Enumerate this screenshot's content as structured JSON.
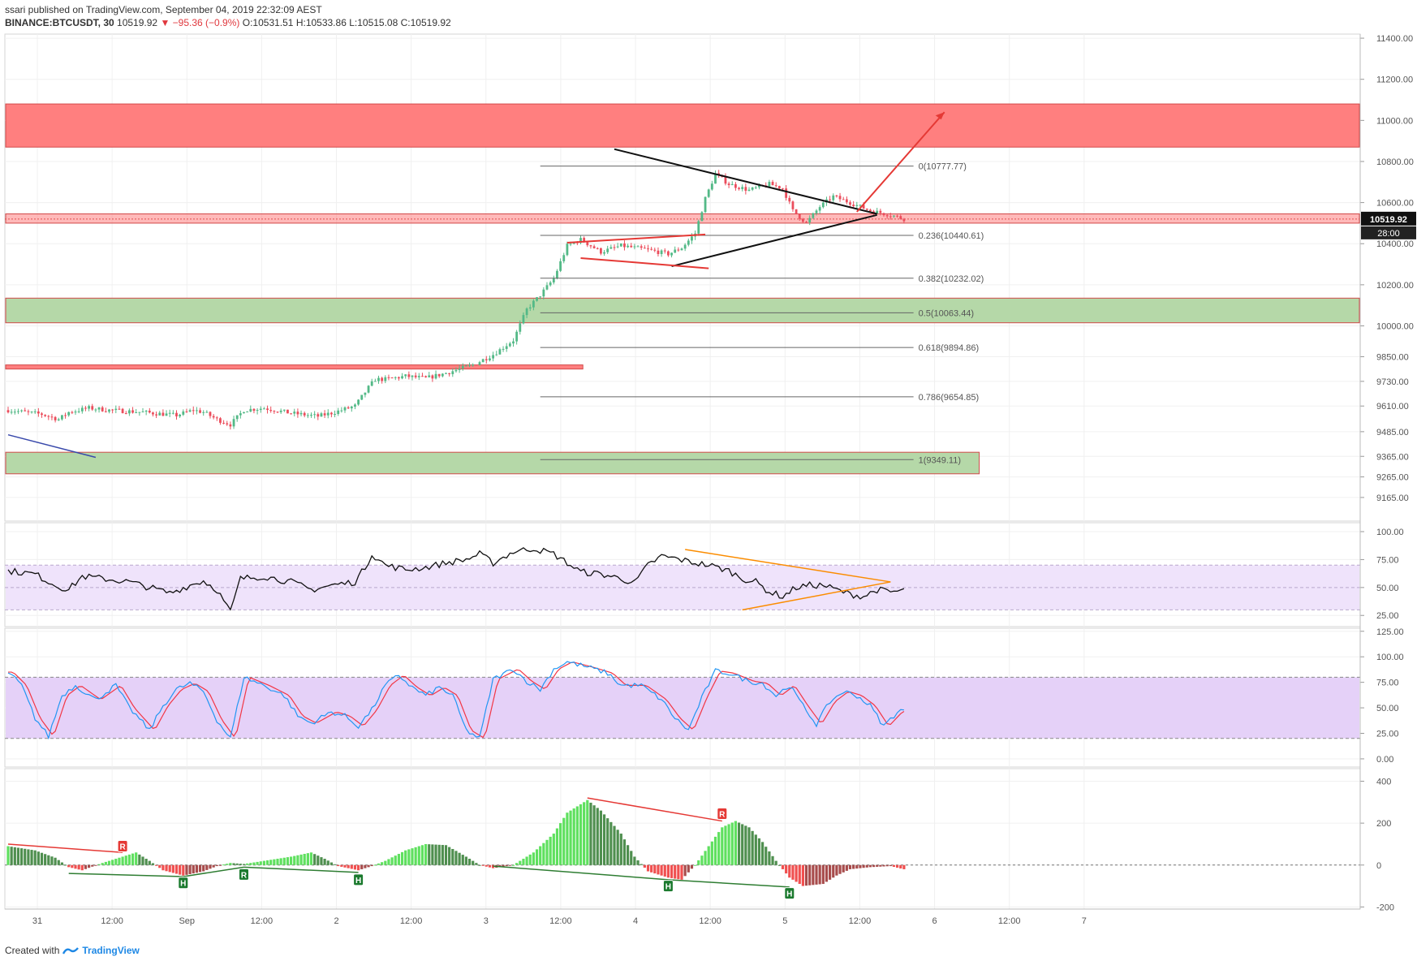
{
  "header": {
    "line1": "ssari published on TradingView.com, September 04, 2019 22:32:09 AEST",
    "symbol": "BINANCE:BTCUSDT, 30",
    "last": "10519.92",
    "change_arrow": "▼",
    "change": "−95.36 (−0.9%)",
    "o": "O:10531.51",
    "h": "H:10533.86",
    "l": "L:10515.08",
    "c": "C:10519.92"
  },
  "footer": {
    "created_with": "Created with",
    "brand": "TradingView"
  },
  "price_tag": {
    "value": "10519.92",
    "countdown": "28:00"
  },
  "colors": {
    "up": "#53b987",
    "down": "#eb4d5c",
    "resistance_zone": "#ff7f7f",
    "support_zone": "#b5d8a8",
    "rsi_band": "#efe3fb",
    "stoch_band": "#e5d1f8",
    "stoch_k": "#2196f3",
    "stoch_d": "#f23645",
    "hist_pos_bright": "#5fe05f",
    "hist_pos_dark": "#4f8f4f",
    "hist_neg_bright": "#f05050",
    "hist_neg_dark": "#a84c4c"
  },
  "chart_data": [
    {
      "type": "candlestick",
      "name": "price",
      "ylim": [
        9050,
        11420
      ],
      "y_ticks": [
        "11400.00",
        "11200.00",
        "11000.00",
        "10800.00",
        "10600.00",
        "10400.00",
        "10200.00",
        "10000.00",
        "9850.00",
        "9730.00",
        "9610.00",
        "9485.00",
        "9365.00",
        "9265.00",
        "9165.00"
      ],
      "y_tick_values": [
        11400,
        11200,
        11000,
        10800,
        10600,
        10400,
        10200,
        10000,
        9850,
        9730,
        9610,
        9485,
        9365,
        9265,
        9165
      ],
      "x_ticks": [
        "31",
        "12:00",
        "Sep",
        "12:00",
        "2",
        "12:00",
        "3",
        "12:00",
        "4",
        "12:00",
        "5",
        "12:00",
        "6",
        "12:00",
        "7"
      ],
      "close_anchors": [
        [
          0,
          9590
        ],
        [
          10,
          9570
        ],
        [
          15,
          9545
        ],
        [
          18,
          9580
        ],
        [
          24,
          9600
        ],
        [
          30,
          9590
        ],
        [
          40,
          9580
        ],
        [
          50,
          9565
        ],
        [
          55,
          9590
        ],
        [
          58,
          9580
        ],
        [
          62,
          9545
        ],
        [
          66,
          9520
        ],
        [
          70,
          9590
        ],
        [
          76,
          9600
        ],
        [
          84,
          9575
        ],
        [
          92,
          9560
        ],
        [
          97,
          9580
        ],
        [
          103,
          9610
        ],
        [
          107,
          9700
        ],
        [
          109,
          9740
        ],
        [
          112,
          9740
        ],
        [
          118,
          9755
        ],
        [
          124,
          9745
        ],
        [
          130,
          9770
        ],
        [
          138,
          9810
        ],
        [
          144,
          9860
        ],
        [
          150,
          9930
        ],
        [
          154,
          10080
        ],
        [
          158,
          10150
        ],
        [
          162,
          10230
        ],
        [
          166,
          10390
        ],
        [
          170,
          10420
        ],
        [
          176,
          10360
        ],
        [
          182,
          10390
        ],
        [
          190,
          10370
        ],
        [
          196,
          10350
        ],
        [
          200,
          10380
        ],
        [
          204,
          10450
        ],
        [
          207,
          10620
        ],
        [
          210,
          10740
        ],
        [
          214,
          10690
        ],
        [
          220,
          10660
        ],
        [
          226,
          10690
        ],
        [
          230,
          10670
        ],
        [
          233,
          10560
        ],
        [
          237,
          10500
        ],
        [
          241,
          10580
        ],
        [
          245,
          10630
        ],
        [
          250,
          10600
        ],
        [
          256,
          10560
        ],
        [
          262,
          10540
        ],
        [
          266,
          10520
        ]
      ],
      "resistance_zones": [
        [
          10870,
          11080
        ],
        [
          10500,
          10545
        ]
      ],
      "support_zones": [
        [
          10015,
          10135
        ],
        [
          9280,
          9385
        ]
      ],
      "level_zone": [
        9790,
        9810
      ],
      "fibonacci": [
        {
          "ratio": "0",
          "label": "0(10777.77)",
          "price": 10777.77
        },
        {
          "ratio": "0.236",
          "label": "0.236(10440.61)",
          "price": 10440.61
        },
        {
          "ratio": "0.382",
          "label": "0.382(10232.02)",
          "price": 10232.02
        },
        {
          "ratio": "0.5",
          "label": "0.5(10063.44)",
          "price": 10063.44
        },
        {
          "ratio": "0.618",
          "label": "0.618(9894.86)",
          "price": 9894.86
        },
        {
          "ratio": "0.786",
          "label": "0.786(9654.85)",
          "price": 9654.85
        },
        {
          "ratio": "1",
          "label": "1(9349.11)",
          "price": 9349.11
        }
      ],
      "last_price": 10519.92
    },
    {
      "type": "line",
      "name": "RSI",
      "ylim": [
        15,
        108
      ],
      "y_ticks": [
        "100.00",
        "75.00",
        "50.00",
        "25.00"
      ],
      "y_tick_values": [
        100,
        75,
        50,
        25
      ],
      "band": [
        30,
        70
      ],
      "anchors": [
        [
          0,
          65
        ],
        [
          8,
          62
        ],
        [
          14,
          52
        ],
        [
          18,
          48
        ],
        [
          22,
          60
        ],
        [
          28,
          58
        ],
        [
          36,
          55
        ],
        [
          42,
          50
        ],
        [
          48,
          45
        ],
        [
          54,
          52
        ],
        [
          58,
          56
        ],
        [
          62,
          48
        ],
        [
          66,
          28
        ],
        [
          69,
          58
        ],
        [
          76,
          60
        ],
        [
          84,
          55
        ],
        [
          90,
          48
        ],
        [
          96,
          52
        ],
        [
          103,
          55
        ],
        [
          106,
          68
        ],
        [
          108,
          80
        ],
        [
          112,
          70
        ],
        [
          118,
          66
        ],
        [
          124,
          68
        ],
        [
          130,
          72
        ],
        [
          136,
          75
        ],
        [
          140,
          80
        ],
        [
          144,
          72
        ],
        [
          150,
          82
        ],
        [
          156,
          85
        ],
        [
          162,
          80
        ],
        [
          166,
          72
        ],
        [
          170,
          64
        ],
        [
          176,
          62
        ],
        [
          182,
          58
        ],
        [
          186,
          54
        ],
        [
          190,
          70
        ],
        [
          194,
          78
        ],
        [
          198,
          76
        ],
        [
          204,
          72
        ],
        [
          208,
          70
        ],
        [
          214,
          65
        ],
        [
          218,
          58
        ],
        [
          222,
          55
        ],
        [
          226,
          46
        ],
        [
          230,
          42
        ],
        [
          234,
          50
        ],
        [
          238,
          52
        ],
        [
          242,
          52
        ],
        [
          246,
          48
        ],
        [
          250,
          44
        ],
        [
          254,
          42
        ],
        [
          258,
          48
        ],
        [
          262,
          46
        ],
        [
          266,
          47
        ]
      ]
    },
    {
      "type": "line",
      "name": "Stoch",
      "ylim": [
        -8,
        128
      ],
      "y_ticks": [
        "125.00",
        "100.00",
        "75.00",
        "50.00",
        "25.00",
        "0.00"
      ],
      "y_tick_values": [
        125,
        100,
        75,
        50,
        25,
        0
      ],
      "band": [
        20,
        80
      ],
      "anchors": [
        [
          0,
          85
        ],
        [
          4,
          72
        ],
        [
          8,
          40
        ],
        [
          12,
          22
        ],
        [
          16,
          62
        ],
        [
          20,
          72
        ],
        [
          26,
          58
        ],
        [
          32,
          72
        ],
        [
          36,
          50
        ],
        [
          42,
          28
        ],
        [
          46,
          52
        ],
        [
          50,
          68
        ],
        [
          54,
          74
        ],
        [
          58,
          66
        ],
        [
          62,
          38
        ],
        [
          66,
          20
        ],
        [
          70,
          80
        ],
        [
          76,
          72
        ],
        [
          82,
          62
        ],
        [
          86,
          42
        ],
        [
          90,
          35
        ],
        [
          96,
          46
        ],
        [
          100,
          42
        ],
        [
          104,
          32
        ],
        [
          108,
          48
        ],
        [
          112,
          72
        ],
        [
          116,
          82
        ],
        [
          120,
          70
        ],
        [
          124,
          62
        ],
        [
          128,
          70
        ],
        [
          132,
          62
        ],
        [
          136,
          28
        ],
        [
          140,
          20
        ],
        [
          144,
          78
        ],
        [
          150,
          88
        ],
        [
          154,
          76
        ],
        [
          158,
          68
        ],
        [
          162,
          88
        ],
        [
          166,
          95
        ],
        [
          172,
          90
        ],
        [
          178,
          84
        ],
        [
          182,
          72
        ],
        [
          188,
          72
        ],
        [
          194,
          58
        ],
        [
          198,
          40
        ],
        [
          202,
          28
        ],
        [
          206,
          60
        ],
        [
          210,
          86
        ],
        [
          214,
          84
        ],
        [
          220,
          76
        ],
        [
          224,
          74
        ],
        [
          228,
          62
        ],
        [
          232,
          72
        ],
        [
          236,
          52
        ],
        [
          240,
          34
        ],
        [
          244,
          56
        ],
        [
          248,
          66
        ],
        [
          252,
          62
        ],
        [
          256,
          52
        ],
        [
          260,
          32
        ],
        [
          264,
          46
        ],
        [
          266,
          48
        ]
      ]
    },
    {
      "type": "bar",
      "name": "MACD histogram",
      "ylim": [
        -210,
        460
      ],
      "y_ticks": [
        "400",
        "200",
        "0",
        "-200"
      ],
      "y_tick_values": [
        400,
        200,
        0,
        -200
      ],
      "anchors": [
        [
          0,
          90
        ],
        [
          8,
          70
        ],
        [
          14,
          35
        ],
        [
          18,
          -10
        ],
        [
          22,
          -25
        ],
        [
          28,
          10
        ],
        [
          34,
          40
        ],
        [
          38,
          60
        ],
        [
          42,
          20
        ],
        [
          46,
          -25
        ],
        [
          52,
          -50
        ],
        [
          58,
          -30
        ],
        [
          62,
          -5
        ],
        [
          66,
          10
        ],
        [
          70,
          5
        ],
        [
          76,
          20
        ],
        [
          84,
          40
        ],
        [
          90,
          60
        ],
        [
          94,
          30
        ],
        [
          98,
          -5
        ],
        [
          104,
          -25
        ],
        [
          108,
          -5
        ],
        [
          112,
          20
        ],
        [
          118,
          70
        ],
        [
          124,
          100
        ],
        [
          130,
          95
        ],
        [
          136,
          40
        ],
        [
          140,
          0
        ],
        [
          144,
          -15
        ],
        [
          150,
          0
        ],
        [
          156,
          60
        ],
        [
          162,
          150
        ],
        [
          166,
          250
        ],
        [
          172,
          310
        ],
        [
          176,
          260
        ],
        [
          182,
          150
        ],
        [
          186,
          40
        ],
        [
          190,
          -30
        ],
        [
          196,
          -60
        ],
        [
          200,
          -70
        ],
        [
          204,
          0
        ],
        [
          208,
          90
        ],
        [
          212,
          180
        ],
        [
          216,
          210
        ],
        [
          220,
          180
        ],
        [
          224,
          110
        ],
        [
          228,
          20
        ],
        [
          232,
          -60
        ],
        [
          236,
          -100
        ],
        [
          242,
          -90
        ],
        [
          246,
          -50
        ],
        [
          250,
          -20
        ],
        [
          256,
          -10
        ],
        [
          262,
          -5
        ],
        [
          266,
          -20
        ]
      ],
      "markers": [
        {
          "label": "R",
          "kind": "bear"
        },
        {
          "label": "H",
          "kind": "bull"
        },
        {
          "label": "R",
          "kind": "bull"
        },
        {
          "label": "H",
          "kind": "bull"
        },
        {
          "label": "H",
          "kind": "bull"
        },
        {
          "label": "R",
          "kind": "bear"
        },
        {
          "label": "H",
          "kind": "bull"
        }
      ]
    }
  ]
}
